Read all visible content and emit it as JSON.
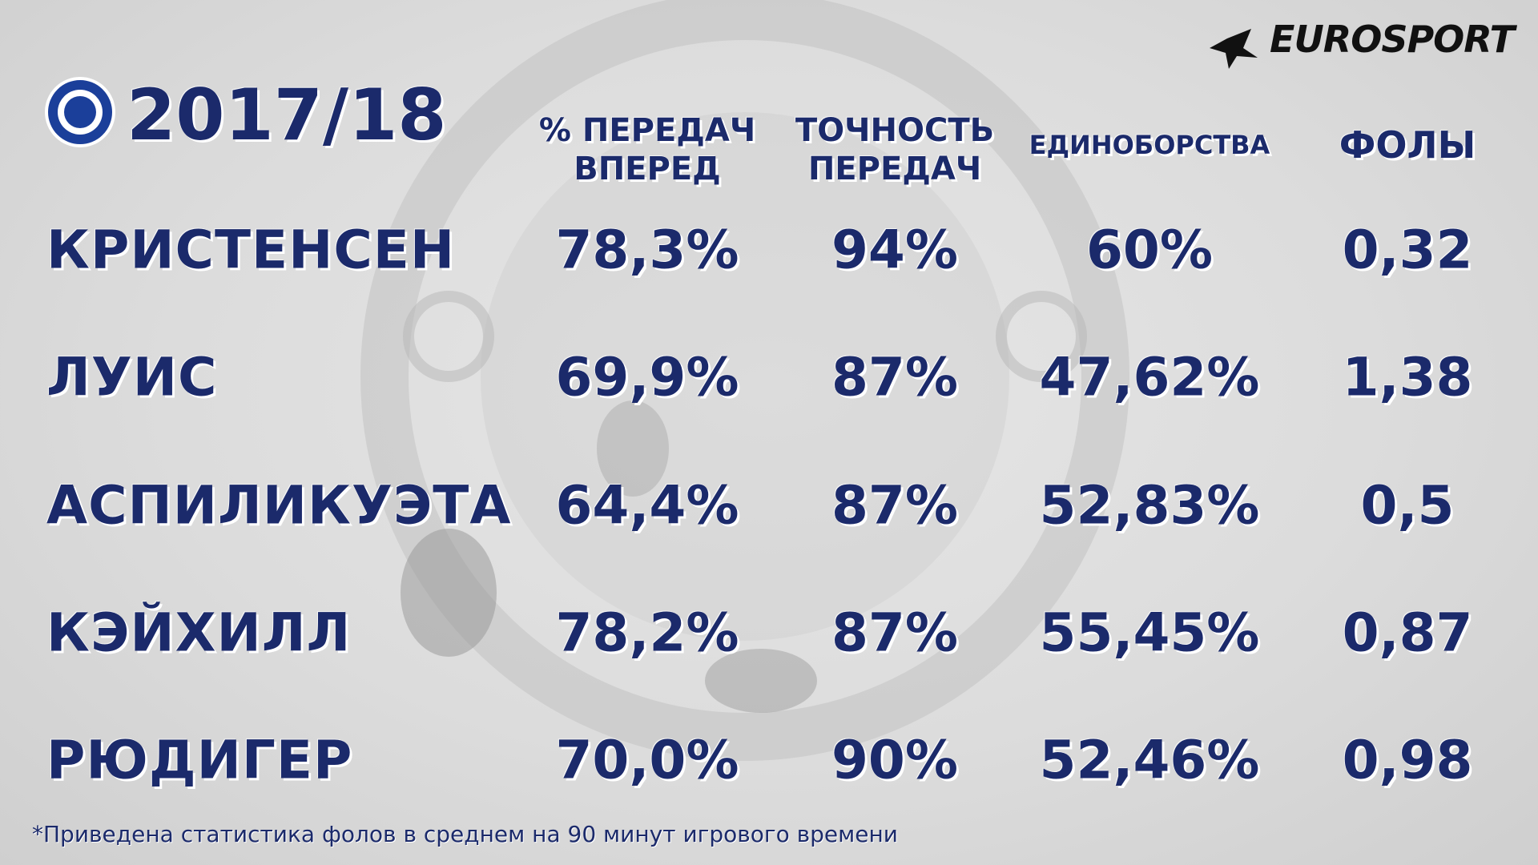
{
  "brand": "EUROSPORT",
  "season": "2017/18",
  "table": {
    "headers": [
      [
        "% ПЕРЕДАЧ",
        "ВПЕРЕД"
      ],
      [
        "ТОЧНОСТЬ",
        "ПЕРЕДАЧ"
      ],
      [
        "ЕДИНОБОРСТВА"
      ],
      [
        "ФОЛЫ"
      ]
    ],
    "rows": [
      [
        "КРИСТЕНСЕН",
        "78,3%",
        "94%",
        "60%",
        "0,32"
      ],
      [
        "ЛУИС",
        "69,9%",
        "87%",
        "47,62%",
        "1,38"
      ],
      [
        "АСПИЛИКУЭТА",
        "64,4%",
        "87%",
        "52,83%",
        "0,5"
      ],
      [
        "КЭЙХИЛЛ",
        "78,2%",
        "87%",
        "55,45%",
        "0,87"
      ],
      [
        "РЮДИГЕР",
        "70,0%",
        "90%",
        "52,46%",
        "0,98"
      ]
    ]
  },
  "footnote": "*Приведена статистика фолов в среднем на 90 минут игрового времени"
}
